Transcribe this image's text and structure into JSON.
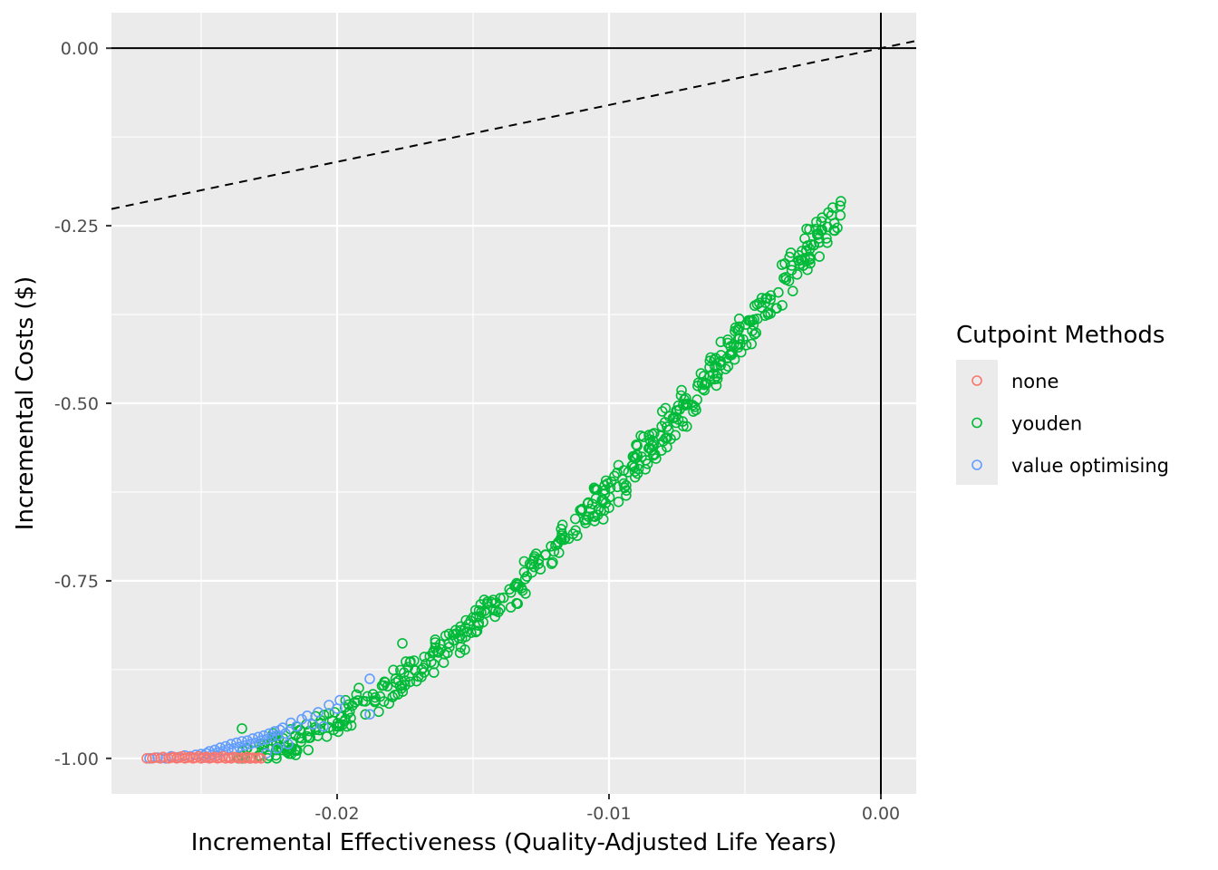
{
  "chart_data": {
    "type": "scatter",
    "xlabel": "Incremental Effectiveness (Quality-Adjusted Life Years)",
    "ylabel": "Incremental Costs ($)",
    "xlim": [
      -0.0283,
      0.0013
    ],
    "ylim": [
      -1.05,
      0.05
    ],
    "x_ticks": [
      -0.02,
      -0.01,
      0.0
    ],
    "x_tick_labels": [
      "-0.02",
      "-0.01",
      "0.00"
    ],
    "y_ticks": [
      0.0,
      -0.25,
      -0.5,
      -0.75,
      -1.0
    ],
    "y_tick_labels": [
      "0.00",
      "-0.25",
      "-0.50",
      "-0.75",
      "-1.00"
    ],
    "grid": true,
    "reference_lines": {
      "vertical_x": 0,
      "horizontal_y": 0,
      "dashed_slope_through_origin": 8,
      "dashed_line_note": "dashed willingness-to-pay line through origin"
    },
    "legend": {
      "title": "Cutpoint Methods",
      "placement": "right"
    },
    "series": [
      {
        "name": "none",
        "color": "#F8766D",
        "marker": "open-circle",
        "points": [
          [
            -0.027,
            -1.0
          ],
          [
            -0.0268,
            -1.0
          ],
          [
            -0.0267,
            -0.999
          ],
          [
            -0.0265,
            -1.0
          ],
          [
            -0.0264,
            -0.998
          ],
          [
            -0.0262,
            -1.0
          ],
          [
            -0.0261,
            -0.999
          ],
          [
            -0.026,
            -0.998
          ],
          [
            -0.0259,
            -1.0
          ],
          [
            -0.0258,
            -0.999
          ],
          [
            -0.0257,
            -0.997
          ],
          [
            -0.0256,
            -1.0
          ],
          [
            -0.0255,
            -0.999
          ],
          [
            -0.0254,
            -0.998
          ],
          [
            -0.0253,
            -1.0
          ],
          [
            -0.0252,
            -0.999
          ],
          [
            -0.0251,
            -0.997
          ],
          [
            -0.025,
            -1.0
          ],
          [
            -0.0249,
            -0.999
          ],
          [
            -0.0248,
            -0.998
          ],
          [
            -0.0247,
            -1.0
          ],
          [
            -0.0246,
            -0.999
          ],
          [
            -0.0245,
            -0.998
          ],
          [
            -0.0244,
            -1.0
          ],
          [
            -0.0243,
            -0.999
          ],
          [
            -0.0242,
            -0.997
          ],
          [
            -0.0241,
            -1.0
          ],
          [
            -0.024,
            -0.999
          ],
          [
            -0.0239,
            -1.0
          ],
          [
            -0.0238,
            -0.998
          ],
          [
            -0.0237,
            -0.999
          ],
          [
            -0.0236,
            -1.0
          ],
          [
            -0.0235,
            -0.999
          ],
          [
            -0.0234,
            -1.0
          ],
          [
            -0.0233,
            -0.998
          ],
          [
            -0.0232,
            -1.0
          ],
          [
            -0.0231,
            -0.999
          ],
          [
            -0.023,
            -1.0
          ],
          [
            -0.0229,
            -0.999
          ],
          [
            -0.0228,
            -1.0
          ]
        ]
      },
      {
        "name": "youden",
        "color": "#00BA38",
        "marker": "open-circle",
        "points": []
      },
      {
        "name": "value optimising",
        "color": "#619CFF",
        "marker": "open-circle",
        "points": [
          [
            -0.0269,
            -1.0
          ],
          [
            -0.0266,
            -0.999
          ],
          [
            -0.0263,
            -1.0
          ],
          [
            -0.0261,
            -0.997
          ],
          [
            -0.0258,
            -0.998
          ],
          [
            -0.0256,
            -0.996
          ],
          [
            -0.0254,
            -0.997
          ],
          [
            -0.0252,
            -0.995
          ],
          [
            -0.025,
            -0.994
          ],
          [
            -0.0249,
            -0.996
          ],
          [
            -0.0248,
            -0.993
          ],
          [
            -0.0247,
            -0.99
          ],
          [
            -0.0246,
            -0.995
          ],
          [
            -0.0245,
            -0.988
          ],
          [
            -0.0244,
            -0.992
          ],
          [
            -0.0243,
            -0.985
          ],
          [
            -0.0242,
            -0.99
          ],
          [
            -0.0241,
            -0.983
          ],
          [
            -0.024,
            -0.987
          ],
          [
            -0.0239,
            -0.98
          ],
          [
            -0.0238,
            -0.986
          ],
          [
            -0.0237,
            -0.978
          ],
          [
            -0.0236,
            -0.984
          ],
          [
            -0.0235,
            -0.976
          ],
          [
            -0.0234,
            -0.982
          ],
          [
            -0.0233,
            -0.975
          ],
          [
            -0.0232,
            -0.98
          ],
          [
            -0.0231,
            -0.972
          ],
          [
            -0.023,
            -0.978
          ],
          [
            -0.0229,
            -0.97
          ],
          [
            -0.0228,
            -0.975
          ],
          [
            -0.0227,
            -0.968
          ],
          [
            -0.0226,
            -0.973
          ],
          [
            -0.0225,
            -0.965
          ],
          [
            -0.0224,
            -0.97
          ],
          [
            -0.0223,
            -0.962
          ],
          [
            -0.0222,
            -0.968
          ],
          [
            -0.0221,
            -0.96
          ],
          [
            -0.022,
            -0.957
          ],
          [
            -0.0219,
            -0.965
          ],
          [
            -0.0217,
            -0.95
          ],
          [
            -0.0215,
            -0.955
          ],
          [
            -0.0213,
            -0.945
          ],
          [
            -0.0211,
            -0.94
          ],
          [
            -0.0209,
            -0.952
          ],
          [
            -0.0207,
            -0.935
          ],
          [
            -0.0205,
            -0.955
          ],
          [
            -0.0203,
            -0.925
          ],
          [
            -0.02,
            -0.93
          ],
          [
            -0.0199,
            -0.918
          ],
          [
            -0.0188,
            -0.938
          ],
          [
            -0.0188,
            -0.888
          ],
          [
            -0.0232,
            -1.0
          ],
          [
            -0.0236,
            -0.999
          ],
          [
            -0.024,
            -0.998
          ],
          [
            -0.0244,
            -0.996
          ],
          [
            -0.0248,
            -0.999
          ],
          [
            -0.0226,
            -0.993
          ],
          [
            -0.0222,
            -0.986
          ],
          [
            -0.0218,
            -0.98
          ]
        ]
      }
    ]
  }
}
